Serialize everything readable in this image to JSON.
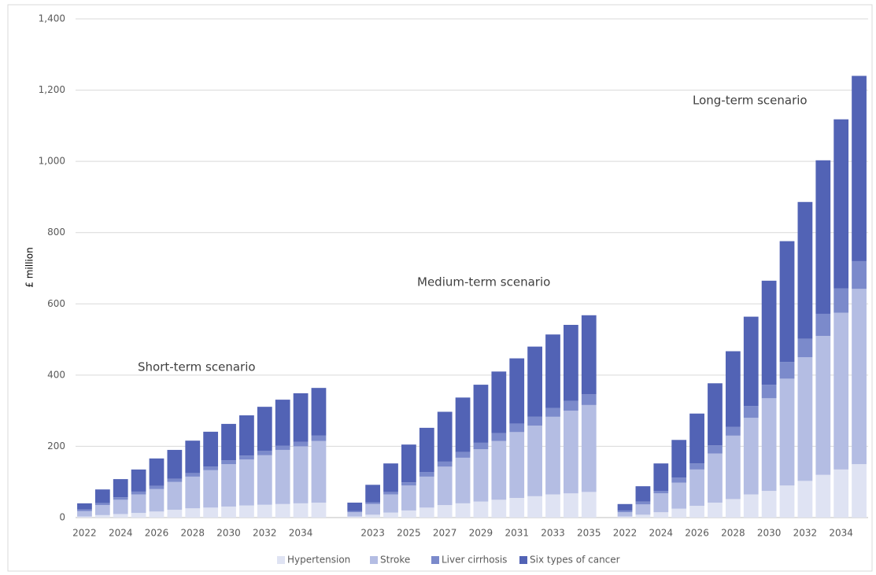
{
  "chart_data": {
    "type": "stacked_bar",
    "y_label": "£ million",
    "annotations": [
      "Short-term scenario",
      "Medium-term scenario",
      "Long-term scenario"
    ],
    "categories": [
      "2022",
      null,
      "2024",
      null,
      "2026",
      null,
      "2028",
      null,
      "2030",
      null,
      "2032",
      null,
      "2034",
      null,
      null,
      null,
      "2023",
      null,
      "2025",
      null,
      "2027",
      null,
      "2029",
      null,
      "2031",
      null,
      "2033",
      null,
      "2035",
      null,
      "2022",
      null,
      "2024",
      null,
      "2026",
      null,
      "2028",
      null,
      "2030",
      null,
      "2032",
      null,
      "2034",
      null
    ],
    "series": [
      {
        "name": "Hypertension",
        "color": "#dfe3f3",
        "values": [
          3,
          7,
          10,
          13,
          17,
          22,
          26,
          28,
          31,
          34,
          36,
          38,
          40,
          42,
          null,
          3,
          8,
          14,
          20,
          28,
          35,
          40,
          45,
          50,
          55,
          60,
          65,
          68,
          72,
          null,
          3,
          8,
          15,
          25,
          33,
          42,
          52,
          65,
          75,
          90,
          103,
          120,
          135,
          150
        ]
      },
      {
        "name": "Stroke",
        "color": "#b4bde3",
        "values": [
          15,
          28,
          40,
          52,
          63,
          78,
          89,
          105,
          119,
          129,
          139,
          152,
          160,
          173,
          null,
          12,
          30,
          51,
          70,
          87,
          108,
          128,
          147,
          165,
          185,
          198,
          218,
          232,
          244,
          null,
          12,
          29,
          53,
          73,
          102,
          138,
          178,
          215,
          260,
          300,
          347,
          390,
          440,
          492
        ]
      },
      {
        "name": "Liver cirrhosis",
        "color": "#7b8acb",
        "values": [
          5,
          6,
          7,
          8,
          9,
          9,
          10,
          10,
          11,
          11,
          12,
          12,
          13,
          15,
          null,
          3,
          5,
          7,
          9,
          13,
          14,
          16,
          18,
          22,
          24,
          25,
          25,
          28,
          30,
          null,
          5,
          8,
          7,
          14,
          17,
          23,
          25,
          33,
          38,
          47,
          52,
          62,
          68,
          78
        ]
      },
      {
        "name": "Six types of cancer",
        "color": "#5263b5",
        "values": [
          17,
          38,
          51,
          62,
          77,
          81,
          91,
          98,
          102,
          113,
          124,
          129,
          136,
          134,
          null,
          24,
          49,
          80,
          106,
          124,
          140,
          153,
          163,
          173,
          183,
          197,
          206,
          213,
          222,
          null,
          18,
          43,
          77,
          106,
          140,
          174,
          212,
          251,
          292,
          339,
          384,
          431,
          475,
          520
        ]
      }
    ],
    "ylim": [
      0,
      1400
    ],
    "yticks": [
      0,
      200,
      400,
      600,
      800,
      {
        "value": 1000,
        "label": "1,000"
      },
      {
        "value": 1200,
        "label": "1,200"
      },
      {
        "value": 1400,
        "label": "1,400"
      }
    ],
    "grid": true,
    "legend": "bottom"
  }
}
